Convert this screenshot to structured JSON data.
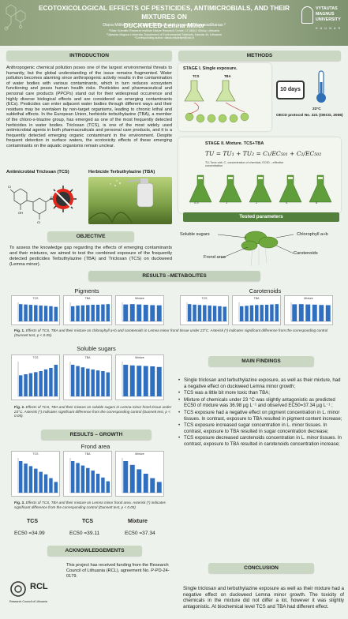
{
  "header": {
    "title_line1": "ECOTOXICOLOGICAL EFFECTS OF PESTICIDES, ANTIMICROBIALS, AND THEIR MIXTURES ON",
    "title_line2_plain": "DUCKWEED ",
    "title_line2_italic": "Lemna Minor",
    "authors": "Diana Miškelytė¹,²*, Jūratė Žaltauskaitė¹, Levonas Manusadžianas ²",
    "affil1": "¹State Scientific Research Institute Nature Research Centre, LT-08412 Vilnius, Lithuania",
    "affil2": "²Vytautas Magnus University, Department of Environmental Sciences, Kaunas 44, Lithuania",
    "affil3": "*Corresponding author: diana.miskelyte@vdu.lt",
    "logo_line1": "VYTAUTAS",
    "logo_line2": "MAGNUS",
    "logo_line3": "UNIVERSITY",
    "logo_city": "K A U N A S"
  },
  "introduction": {
    "heading": "INTRODUCTION",
    "text": "Anthropogenic chemical pollution poses one of the largest environmental threats to humanity, but the global understanding of the issue remains fragmented. Water pollution becomes alarming since anthropogenic activity results in the contamination of water bodies with various contaminants, which in turn reduces ecosystem functioning and poses human health risks. Pesticides and pharmaceutical and personal care products (PPCPs) stand out for their widespread occurrence and highly diverse biological effects and are considered as emerging contaminants (ECs). Pesticides can enter adjacent water bodies through different ways and their residues may be overtaken by non-target organisms, leading to chronic lethal and sublethal effects. In the European Union, herbicide terbuthylazine (TBA), a member of the chloro-s-triazine group, has emerged as one of the most frequently detected herbicides in water bodies. Triclosan (TCS), is one of the most widely used antimicrobial agents in both pharmaceuticals and personal care products, and it is a frequently detected emerging organic contaminant in the environment. Despite frequent detection in surface waters, the ecotoxicity effects of these emerging contaminants on the aquatic organisms remain unclear.",
    "label_tcs": "Antimicrobial Triclosan (TCS)",
    "label_tba": "Herbicide Terbuthylazine (TBA)"
  },
  "objective": {
    "heading": "OBJECTIVE",
    "text": "To assess the knowledge gap regarding the effects of emerging contaminants and their mixtures, we aimed to test the combined exposure of the frequently detected pesticides Terbuthylazine (TBA) and Triclosan (TCS) on duckweed (Lemna minor)."
  },
  "methods": {
    "heading": "METHODS",
    "stage1": "STAGE I. Single exposure.",
    "stage1_tcs": "TCS",
    "stage1_tba": "TBA",
    "days": "10 days",
    "temp": "23°C",
    "oecd": "OECD protocol No. 221 (OECD, 2006)",
    "stage2": "STAGE II. Mixture. TCS+TBA",
    "formula": "TU = TU₁ + TU₂ = C₁/EC₅₀₁ + C₂/EC₅₀₂",
    "formula_note": "TU-Toxic unit, C- concentration of chemical, EC50 – effective concentration",
    "tested": "Tested parameters",
    "p_soluble": "Soluble sugars",
    "p_chl": "Chlorophyll a+b",
    "p_frond": "Frond area",
    "p_car": "Carotenoids",
    "stage2_units": [
      "0.5",
      "1",
      "2",
      "4",
      "8"
    ]
  },
  "metabolites": {
    "heading": "RESULTS –METABOLITES",
    "pigments": "Pigments",
    "carotenoids": "Carotenoids",
    "soluble": "Soluble sugars",
    "panel_tcs": "TCS",
    "panel_tba": "TBA",
    "panel_mix": "Mixture",
    "fig1_num": "Fig. 1.",
    "fig1": "Effects of TCS, TBA and their mixture on chlorophyll a+b and carotenoids in Lemna minor frond tissue under 23°C. Asterisk (*) indicates significant difference from the corresponding control (Dunnett test, p < 0.05).",
    "fig2_num": "Fig. 2.",
    "fig2": "Effects of TCS, TBA and their mixture on soluble sugars in Lemna minor frond tissue under 23°C. Asterisk (*) indicates significant difference from the corresponding control (Dunnett test, p < 0.05)."
  },
  "growth": {
    "heading": "RESULTS – GROWTH",
    "frond": "Frond area",
    "fig3_num": "Fig. 3.",
    "fig3": "Effects of TCS, TBA and their mixture on Lemna minor frond area. Asterisk (*) indicates significant difference from the corresponding control (Dunnett test, p < 0.05)",
    "ec_tcs_lbl": "TCS",
    "ec_tba_lbl": "TCS",
    "ec_mix_lbl": "Mixture",
    "ec_tcs": "EC50 =34.99",
    "ec_tba": "EC50 =39.11",
    "ec_mix": "EC50 =37.34"
  },
  "findings": {
    "heading": "MAIN FINDINGS",
    "items": [
      "Single triclosan and terbuthylazine exposure, as well as their mixture, had a negative effect on duckweed Lemna minor growth;",
      "TCS was a little bit more toxic than TBA;",
      "Mixture of chemicals under 23 °C was slightly antagonistic as predicted EC50 of mixture was 36.98 µg L⁻¹ and observed EC50=37.34 µg L⁻¹ ;",
      "TCS exposure had a negative effect on pigment concentration in L. minor tissues. In contrast, exposure to TBA resulted in pigment content increase;",
      "TCS exposure increased sugar concentration in L. minor tissues. In contrast, exposure to TBA resulted in sugar concentration decrease;",
      "TCS exposure decreased carotenoids concentration in L. minor tissues. In contrast, exposure to TBA resulted in carotenoids concentration increase;"
    ]
  },
  "conclusion": {
    "heading": "CONCLUSION",
    "text": "Single triclosan and terbuthylazine exposure as well as their mixture had a negative effect on duckweed Lemna minor growth. The toxicity of chemicals in the mixture did not differ a lot, however it was slightly antagonistic. At biochemical level TCS and TBA had different effect."
  },
  "acknowledgements": {
    "heading": "ACKNOWLEDGEMENTS",
    "text": "This project has received funding from the Research Council of Lithuania (RCL), agreement No. P-PD-24-0179.",
    "rcl": "RCL",
    "rcl_sub": "Research Council of Lithuania"
  },
  "chart_data": [
    {
      "type": "bar",
      "panel": "Pigments TCS",
      "values": [
        100,
        98,
        96,
        94,
        92,
        90,
        88,
        84
      ]
    },
    {
      "type": "bar",
      "panel": "Pigments TBA",
      "values": [
        100,
        104,
        106,
        108,
        110,
        110,
        112,
        114
      ]
    },
    {
      "type": "bar",
      "panel": "Pigments Mixture",
      "values": [
        100,
        102,
        100,
        98,
        96,
        95
      ]
    },
    {
      "type": "bar",
      "panel": "Carotenoids TCS",
      "values": [
        100,
        97,
        95,
        94,
        92,
        90,
        88,
        85
      ]
    },
    {
      "type": "bar",
      "panel": "Carotenoids TBA",
      "values": [
        100,
        103,
        106,
        108,
        109,
        110,
        112,
        114
      ]
    },
    {
      "type": "bar",
      "panel": "Carotenoids Mixture",
      "values": [
        100,
        101,
        99,
        98,
        96,
        95
      ]
    },
    {
      "type": "bar",
      "panel": "Soluble sugars TCS",
      "values": [
        100,
        105,
        110,
        115,
        120,
        128,
        135,
        150
      ]
    },
    {
      "type": "bar",
      "panel": "Soluble sugars TBA",
      "values": [
        100,
        96,
        92,
        88,
        85,
        82,
        80,
        76
      ]
    },
    {
      "type": "bar",
      "panel": "Soluble sugars Mixture",
      "values": [
        100,
        98,
        97,
        96,
        95,
        93
      ]
    },
    {
      "type": "bar",
      "panel": "Frond area TCS",
      "values": [
        100,
        92,
        84,
        76,
        66,
        58,
        46,
        34
      ]
    },
    {
      "type": "bar",
      "panel": "Frond area TBA",
      "values": [
        100,
        94,
        86,
        78,
        70,
        60,
        48,
        36
      ]
    },
    {
      "type": "bar",
      "panel": "Frond area Mixture",
      "values": [
        100,
        88,
        74,
        60,
        46,
        34
      ]
    }
  ]
}
